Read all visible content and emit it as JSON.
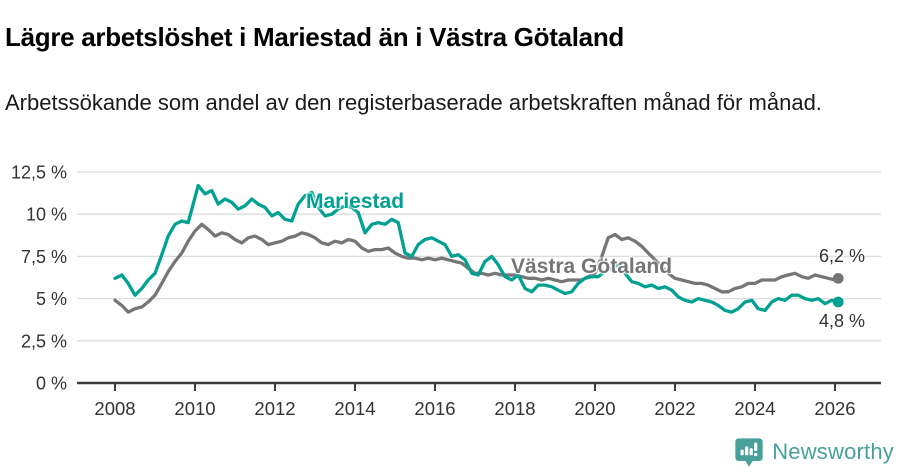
{
  "header": {
    "title": "Lägre arbetslöshet i Mariestad än i Västra Götaland",
    "subtitle": "Arbetssökande som andel av den registerbaserade arbetskraften månad för månad."
  },
  "footer": {
    "brand": "Newsworthy",
    "brand_color": "#47a09a",
    "brand_icon": "newsworthy-pin-barchart-icon"
  },
  "colors": {
    "mariestad": "#00a192",
    "vastra_gotaland": "#767676",
    "grid": "#dcdcdc",
    "axis": "#3d3d3d",
    "tick_text": "#333333",
    "end_label_text": "#333333"
  },
  "chart_data": {
    "type": "line",
    "title": "Lägre arbetslöshet i Mariestad än i Västra Götaland",
    "subtitle": "Arbetssökande som andel av den registerbaserade arbetskraften månad för månad.",
    "xlabel": "",
    "ylabel": "",
    "grid": "horizontal",
    "legend_position": "inline-labels-on-lines",
    "x_axis": {
      "range": [
        2007.05,
        2027.1
      ],
      "ticks": [
        2008,
        2010,
        2012,
        2014,
        2016,
        2018,
        2020,
        2022,
        2024,
        2026
      ],
      "tick_labels": [
        "2008",
        "2010",
        "2012",
        "2014",
        "2016",
        "2018",
        "2020",
        "2022",
        "2024",
        "2026"
      ]
    },
    "y_axis": {
      "range": [
        0,
        12.5
      ],
      "ticks": [
        0,
        2.5,
        5,
        7.5,
        10,
        12.5
      ],
      "tick_labels": [
        "0 %",
        "2,5 %",
        "5 %",
        "7,5 %",
        "10 %",
        "12,5 %"
      ]
    },
    "series": [
      {
        "name": "Västra Götaland",
        "color": "#767676",
        "end_value": 6.2,
        "end_label": "6,2 %",
        "points": [
          [
            2008.0,
            4.9
          ],
          [
            2008.17,
            4.6
          ],
          [
            2008.33,
            4.2
          ],
          [
            2008.5,
            4.4
          ],
          [
            2008.67,
            4.5
          ],
          [
            2008.83,
            4.8
          ],
          [
            2009.0,
            5.2
          ],
          [
            2009.17,
            5.9
          ],
          [
            2009.33,
            6.6
          ],
          [
            2009.5,
            7.2
          ],
          [
            2009.67,
            7.7
          ],
          [
            2009.83,
            8.4
          ],
          [
            2010.0,
            9.0
          ],
          [
            2010.17,
            9.4
          ],
          [
            2010.33,
            9.1
          ],
          [
            2010.5,
            8.7
          ],
          [
            2010.67,
            8.9
          ],
          [
            2010.83,
            8.8
          ],
          [
            2011.0,
            8.5
          ],
          [
            2011.17,
            8.3
          ],
          [
            2011.33,
            8.6
          ],
          [
            2011.5,
            8.7
          ],
          [
            2011.67,
            8.5
          ],
          [
            2011.83,
            8.2
          ],
          [
            2012.0,
            8.3
          ],
          [
            2012.17,
            8.4
          ],
          [
            2012.33,
            8.6
          ],
          [
            2012.5,
            8.7
          ],
          [
            2012.67,
            8.9
          ],
          [
            2012.83,
            8.8
          ],
          [
            2013.0,
            8.6
          ],
          [
            2013.17,
            8.3
          ],
          [
            2013.33,
            8.2
          ],
          [
            2013.5,
            8.4
          ],
          [
            2013.67,
            8.3
          ],
          [
            2013.83,
            8.5
          ],
          [
            2014.0,
            8.4
          ],
          [
            2014.17,
            8.0
          ],
          [
            2014.33,
            7.8
          ],
          [
            2014.5,
            7.9
          ],
          [
            2014.67,
            7.9
          ],
          [
            2014.83,
            8.0
          ],
          [
            2015.0,
            7.7
          ],
          [
            2015.17,
            7.5
          ],
          [
            2015.33,
            7.4
          ],
          [
            2015.5,
            7.4
          ],
          [
            2015.67,
            7.3
          ],
          [
            2015.83,
            7.4
          ],
          [
            2016.0,
            7.3
          ],
          [
            2016.17,
            7.4
          ],
          [
            2016.33,
            7.3
          ],
          [
            2016.5,
            7.2
          ],
          [
            2016.67,
            7.1
          ],
          [
            2016.83,
            6.8
          ],
          [
            2017.0,
            6.5
          ],
          [
            2017.17,
            6.5
          ],
          [
            2017.33,
            6.4
          ],
          [
            2017.5,
            6.5
          ],
          [
            2017.67,
            6.4
          ],
          [
            2017.83,
            6.4
          ],
          [
            2018.0,
            6.4
          ],
          [
            2018.17,
            6.3
          ],
          [
            2018.33,
            6.2
          ],
          [
            2018.5,
            6.2
          ],
          [
            2018.67,
            6.1
          ],
          [
            2018.83,
            6.2
          ],
          [
            2019.0,
            6.1
          ],
          [
            2019.17,
            6.0
          ],
          [
            2019.33,
            6.1
          ],
          [
            2019.5,
            6.1
          ],
          [
            2019.67,
            6.1
          ],
          [
            2019.83,
            6.3
          ],
          [
            2020.0,
            6.5
          ],
          [
            2020.17,
            7.5
          ],
          [
            2020.33,
            8.6
          ],
          [
            2020.5,
            8.8
          ],
          [
            2020.67,
            8.5
          ],
          [
            2020.83,
            8.6
          ],
          [
            2021.0,
            8.4
          ],
          [
            2021.17,
            8.1
          ],
          [
            2021.33,
            7.7
          ],
          [
            2021.5,
            7.3
          ],
          [
            2021.67,
            6.9
          ],
          [
            2021.83,
            6.5
          ],
          [
            2022.0,
            6.2
          ],
          [
            2022.17,
            6.1
          ],
          [
            2022.33,
            6.0
          ],
          [
            2022.5,
            5.9
          ],
          [
            2022.67,
            5.9
          ],
          [
            2022.83,
            5.8
          ],
          [
            2023.0,
            5.6
          ],
          [
            2023.17,
            5.4
          ],
          [
            2023.33,
            5.4
          ],
          [
            2023.5,
            5.6
          ],
          [
            2023.67,
            5.7
          ],
          [
            2023.83,
            5.9
          ],
          [
            2024.0,
            5.9
          ],
          [
            2024.17,
            6.1
          ],
          [
            2024.33,
            6.1
          ],
          [
            2024.5,
            6.1
          ],
          [
            2024.67,
            6.3
          ],
          [
            2024.83,
            6.4
          ],
          [
            2025.0,
            6.5
          ],
          [
            2025.17,
            6.3
          ],
          [
            2025.33,
            6.2
          ],
          [
            2025.5,
            6.4
          ],
          [
            2025.67,
            6.3
          ],
          [
            2025.83,
            6.2
          ],
          [
            2026.0,
            6.1
          ],
          [
            2026.08,
            6.2
          ]
        ]
      },
      {
        "name": "Mariestad",
        "color": "#00a192",
        "end_value": 4.8,
        "end_label": "4,8 %",
        "points": [
          [
            2008.0,
            6.2
          ],
          [
            2008.17,
            6.4
          ],
          [
            2008.33,
            5.9
          ],
          [
            2008.5,
            5.2
          ],
          [
            2008.67,
            5.6
          ],
          [
            2008.83,
            6.1
          ],
          [
            2009.0,
            6.5
          ],
          [
            2009.17,
            7.6
          ],
          [
            2009.33,
            8.7
          ],
          [
            2009.5,
            9.4
          ],
          [
            2009.67,
            9.6
          ],
          [
            2009.83,
            9.5
          ],
          [
            2010.0,
            11.0
          ],
          [
            2010.08,
            11.7
          ],
          [
            2010.25,
            11.2
          ],
          [
            2010.42,
            11.4
          ],
          [
            2010.58,
            10.6
          ],
          [
            2010.75,
            10.9
          ],
          [
            2010.92,
            10.7
          ],
          [
            2011.08,
            10.3
          ],
          [
            2011.25,
            10.5
          ],
          [
            2011.42,
            10.9
          ],
          [
            2011.58,
            10.6
          ],
          [
            2011.75,
            10.4
          ],
          [
            2011.92,
            9.9
          ],
          [
            2012.08,
            10.1
          ],
          [
            2012.25,
            9.7
          ],
          [
            2012.42,
            9.6
          ],
          [
            2012.58,
            10.6
          ],
          [
            2012.75,
            11.1
          ],
          [
            2012.92,
            11.3
          ],
          [
            2013.08,
            10.4
          ],
          [
            2013.25,
            9.9
          ],
          [
            2013.42,
            10.0
          ],
          [
            2013.58,
            10.3
          ],
          [
            2013.75,
            10.5
          ],
          [
            2013.92,
            10.4
          ],
          [
            2014.08,
            10.1
          ],
          [
            2014.25,
            8.9
          ],
          [
            2014.42,
            9.4
          ],
          [
            2014.58,
            9.5
          ],
          [
            2014.75,
            9.4
          ],
          [
            2014.92,
            9.7
          ],
          [
            2015.08,
            9.5
          ],
          [
            2015.25,
            7.7
          ],
          [
            2015.42,
            7.5
          ],
          [
            2015.58,
            8.2
          ],
          [
            2015.75,
            8.5
          ],
          [
            2015.92,
            8.6
          ],
          [
            2016.08,
            8.4
          ],
          [
            2016.25,
            8.2
          ],
          [
            2016.42,
            7.5
          ],
          [
            2016.58,
            7.6
          ],
          [
            2016.75,
            7.3
          ],
          [
            2016.92,
            6.5
          ],
          [
            2017.08,
            6.4
          ],
          [
            2017.25,
            7.2
          ],
          [
            2017.42,
            7.5
          ],
          [
            2017.58,
            7.0
          ],
          [
            2017.75,
            6.3
          ],
          [
            2017.92,
            6.1
          ],
          [
            2018.08,
            6.4
          ],
          [
            2018.25,
            5.6
          ],
          [
            2018.42,
            5.4
          ],
          [
            2018.58,
            5.8
          ],
          [
            2018.75,
            5.8
          ],
          [
            2018.92,
            5.7
          ],
          [
            2019.08,
            5.5
          ],
          [
            2019.25,
            5.3
          ],
          [
            2019.42,
            5.4
          ],
          [
            2019.58,
            5.9
          ],
          [
            2019.75,
            6.2
          ],
          [
            2019.92,
            6.3
          ],
          [
            2020.08,
            6.3
          ],
          [
            2020.25,
            6.6
          ],
          [
            2020.42,
            6.8
          ],
          [
            2020.58,
            7.0
          ],
          [
            2020.75,
            6.5
          ],
          [
            2020.92,
            6.0
          ],
          [
            2021.08,
            5.9
          ],
          [
            2021.25,
            5.7
          ],
          [
            2021.42,
            5.8
          ],
          [
            2021.58,
            5.6
          ],
          [
            2021.75,
            5.7
          ],
          [
            2021.92,
            5.5
          ],
          [
            2022.08,
            5.1
          ],
          [
            2022.25,
            4.9
          ],
          [
            2022.42,
            4.8
          ],
          [
            2022.58,
            5.0
          ],
          [
            2022.75,
            4.9
          ],
          [
            2022.92,
            4.8
          ],
          [
            2023.08,
            4.6
          ],
          [
            2023.25,
            4.3
          ],
          [
            2023.42,
            4.2
          ],
          [
            2023.58,
            4.4
          ],
          [
            2023.75,
            4.8
          ],
          [
            2023.92,
            4.9
          ],
          [
            2024.08,
            4.4
          ],
          [
            2024.25,
            4.3
          ],
          [
            2024.42,
            4.8
          ],
          [
            2024.58,
            5.0
          ],
          [
            2024.75,
            4.9
          ],
          [
            2024.92,
            5.2
          ],
          [
            2025.08,
            5.2
          ],
          [
            2025.25,
            5.0
          ],
          [
            2025.42,
            4.9
          ],
          [
            2025.58,
            5.0
          ],
          [
            2025.75,
            4.7
          ],
          [
            2025.92,
            4.9
          ],
          [
            2026.08,
            4.8
          ]
        ]
      }
    ]
  }
}
